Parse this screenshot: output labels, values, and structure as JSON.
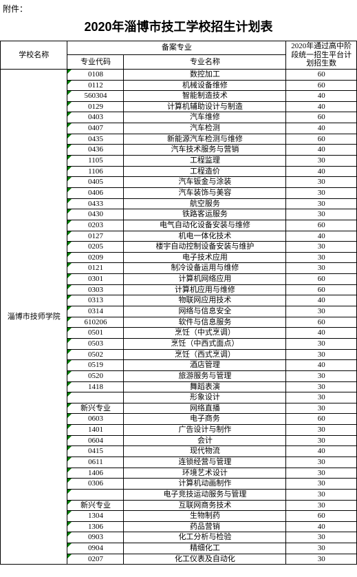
{
  "attachment_label": "附件：",
  "title": "2020年淄博市技工学校招生计划表",
  "headers": {
    "school": "学校名称",
    "record_major": "备案专业",
    "code": "专业代码",
    "major_name": "专业名称",
    "plan": "2020年通过高中阶段统一招生平台计划招生数"
  },
  "school_name": "淄博市技师学院",
  "rows": [
    {
      "code": "0108",
      "major": "数控加工",
      "plan": 60
    },
    {
      "code": "0112",
      "major": "机械设备维修",
      "plan": 60
    },
    {
      "code": "560304",
      "major": "智能制造技术",
      "plan": 40
    },
    {
      "code": "0129",
      "major": "计算机辅助设计与制造",
      "plan": 40
    },
    {
      "code": "0403",
      "major": "汽车维修",
      "plan": 60
    },
    {
      "code": "0407",
      "major": "汽车检测",
      "plan": 40
    },
    {
      "code": "0435",
      "major": "新能源汽车检测与维修",
      "plan": 60
    },
    {
      "code": "0436",
      "major": "汽车技术服务与营销",
      "plan": 40
    },
    {
      "code": "1105",
      "major": "工程监理",
      "plan": 30
    },
    {
      "code": "1106",
      "major": "工程造价",
      "plan": 40
    },
    {
      "code": "0405",
      "major": "汽车钣金与涂装",
      "plan": 30
    },
    {
      "code": "0406",
      "major": "汽车装饰与美容",
      "plan": 30
    },
    {
      "code": "0433",
      "major": "航空服务",
      "plan": 30
    },
    {
      "code": "0430",
      "major": "铁路客运服务",
      "plan": 30
    },
    {
      "code": "0203",
      "major": "电气自动化设备安装与维修",
      "plan": 60
    },
    {
      "code": "0127",
      "major": "机电一体化技术",
      "plan": 40
    },
    {
      "code": "0205",
      "major": "楼宇自动控制设备安装与维护",
      "plan": 30
    },
    {
      "code": "0209",
      "major": "电子技术应用",
      "plan": 30
    },
    {
      "code": "0121",
      "major": "制冷设备运用与维修",
      "plan": 30
    },
    {
      "code": "0301",
      "major": "计算机网络应用",
      "plan": 60
    },
    {
      "code": "0303",
      "major": "计算机应用与维修",
      "plan": 60
    },
    {
      "code": "0313",
      "major": "物联网应用技术",
      "plan": 40
    },
    {
      "code": "0314",
      "major": "网络与信息安全",
      "plan": 30
    },
    {
      "code": "610206",
      "major": "软件与信息服务",
      "plan": 60
    },
    {
      "code": "0501",
      "major": "烹饪（中式烹调）",
      "plan": 40
    },
    {
      "code": "0503",
      "major": "烹饪（中西式面点）",
      "plan": 30
    },
    {
      "code": "0502",
      "major": "烹饪（西式烹调）",
      "plan": 30
    },
    {
      "code": "0519",
      "major": "酒店管理",
      "plan": 40
    },
    {
      "code": "0520",
      "major": "旅游服务与管理",
      "plan": 30
    },
    {
      "code": "1418",
      "major": "舞蹈表演",
      "plan": 30
    },
    {
      "code": "",
      "major": "形象设计",
      "plan": 30
    },
    {
      "code": "新兴专业",
      "major": "网络直播",
      "plan": 30
    },
    {
      "code": "0603",
      "major": "电子商务",
      "plan": 60
    },
    {
      "code": "1401",
      "major": "广告设计与制作",
      "plan": 30
    },
    {
      "code": "0604",
      "major": "会计",
      "plan": 30
    },
    {
      "code": "0415",
      "major": "现代物流",
      "plan": 40
    },
    {
      "code": "0611",
      "major": "连锁经营与管理",
      "plan": 30
    },
    {
      "code": "1406",
      "major": "环境艺术设计",
      "plan": 30
    },
    {
      "code": "0306",
      "major": "计算机动画制作",
      "plan": 30
    },
    {
      "code": "",
      "major": "电子竞技运动服务与管理",
      "plan": 30
    },
    {
      "code": "新兴专业",
      "major": "互联网商务技术",
      "plan": 30
    },
    {
      "code": "1304",
      "major": "生物制药",
      "plan": 60
    },
    {
      "code": "1306",
      "major": "药品营销",
      "plan": 40
    },
    {
      "code": "0903",
      "major": "化工分析与检验",
      "plan": 30
    },
    {
      "code": "0904",
      "major": "精细化工",
      "plan": 30
    },
    {
      "code": "0207",
      "major": "化工仪表及自动化",
      "plan": 30
    }
  ]
}
